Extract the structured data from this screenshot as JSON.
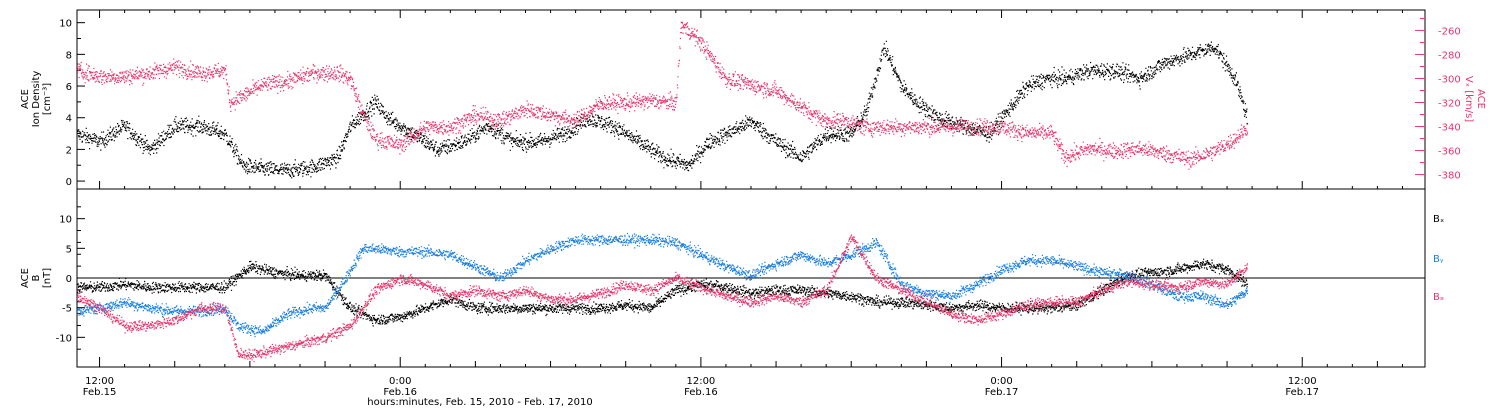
{
  "colors": {
    "black": "#000000",
    "pink": "#e8356a",
    "blue": "#1a7fe0"
  },
  "x_axis": {
    "title": "hours:minutes, Feb. 15, 2010 - Feb. 17, 2010",
    "ticks": [
      {
        "time": "12:00",
        "date": "Feb.15",
        "hour": 12
      },
      {
        "time": "0:00",
        "date": "Feb.16",
        "hour": 24
      },
      {
        "time": "12:00",
        "date": "Feb.16",
        "hour": 36
      },
      {
        "time": "0:00",
        "date": "Feb.17",
        "hour": 48
      },
      {
        "time": "12:00",
        "date": "Feb.17",
        "hour": 60
      }
    ],
    "range_hours": [
      11.1,
      64.9
    ]
  },
  "chart_data": [
    {
      "type": "scatter",
      "panel": "top",
      "ylabel_left": [
        "ACE",
        "Ion Density",
        "[cm⁻³]"
      ],
      "ylabel_right": [
        "ACE",
        "Vₓ [km/s]"
      ],
      "left_axis": {
        "ylim": [
          -0.5,
          10.8
        ],
        "ticks": [
          "0",
          "2",
          "4",
          "6",
          "8",
          "10"
        ],
        "tick_values": [
          0,
          2,
          4,
          6,
          8,
          10
        ]
      },
      "right_axis": {
        "ylim": [
          -392,
          -243
        ],
        "ticks": [
          "-260",
          "-280",
          "-300",
          "-320",
          "-340",
          "-360",
          "-380"
        ],
        "tick_values": [
          -260,
          -280,
          -300,
          -320,
          -340,
          -360,
          -380
        ]
      },
      "grid": false,
      "series": [
        {
          "key": "density",
          "color": "black",
          "axis": "left",
          "spread": 0.45,
          "x": [
            11.1,
            12.0,
            13.0,
            14.0,
            15.0,
            16.0,
            17.0,
            17.7,
            18.5,
            19.5,
            20.5,
            21.5,
            22.0,
            23.0,
            23.5,
            24.5,
            25.5,
            26.5,
            27.5,
            28.5,
            29.5,
            30.5,
            31.5,
            32.5,
            33.5,
            34.5,
            35.5,
            36.3,
            37.0,
            38.0,
            39.0,
            40.0,
            41.0,
            42.0,
            42.6,
            43.3,
            44.0,
            44.6,
            45.5,
            46.5,
            47.5,
            48.5,
            49.0,
            49.8,
            50.5,
            51.5,
            52.5,
            53.5,
            54.5,
            55.5,
            56.5,
            57.3,
            57.8
          ],
          "y": [
            3.0,
            2.5,
            3.5,
            2.0,
            3.5,
            3.5,
            3.0,
            1.0,
            0.8,
            0.7,
            0.9,
            1.5,
            3.5,
            5.0,
            4.0,
            3.0,
            2.0,
            2.5,
            3.5,
            2.5,
            2.5,
            3.0,
            4.0,
            3.5,
            2.5,
            1.5,
            1.0,
            2.5,
            3.0,
            3.8,
            2.5,
            1.5,
            3.0,
            3.0,
            4.5,
            8.5,
            6.0,
            5.0,
            4.0,
            3.5,
            3.0,
            5.0,
            6.0,
            6.5,
            6.5,
            7.0,
            7.0,
            6.5,
            7.5,
            8.0,
            8.5,
            6.5,
            4.0
          ]
        },
        {
          "key": "vx",
          "color": "pink",
          "axis": "right",
          "spread": 6,
          "x": [
            11.1,
            12.0,
            13.0,
            14.0,
            15.0,
            16.0,
            17.0,
            17.2,
            18.5,
            19.5,
            20.5,
            21.5,
            22.0,
            22.5,
            23.0,
            24.0,
            25.0,
            26.0,
            27.0,
            28.0,
            29.0,
            30.0,
            31.0,
            32.0,
            33.0,
            34.0,
            35.0,
            35.2,
            35.4,
            36.0,
            37.0,
            38.0,
            39.0,
            40.5,
            41.0,
            41.8,
            42.5,
            44.0,
            46.0,
            48.0,
            49.0,
            50.0,
            50.5,
            51.5,
            52.5,
            53.5,
            54.5,
            55.5,
            56.5,
            57.3,
            57.8
          ],
          "y": [
            -293,
            -298,
            -298,
            -295,
            -290,
            -295,
            -293,
            -320,
            -305,
            -302,
            -295,
            -295,
            -300,
            -330,
            -350,
            -355,
            -340,
            -340,
            -330,
            -335,
            -325,
            -330,
            -335,
            -320,
            -320,
            -318,
            -320,
            -255,
            -258,
            -270,
            -300,
            -305,
            -310,
            -330,
            -335,
            -335,
            -340,
            -340,
            -340,
            -340,
            -345,
            -345,
            -365,
            -358,
            -360,
            -358,
            -362,
            -367,
            -360,
            -350,
            -340
          ]
        }
      ]
    },
    {
      "type": "scatter",
      "panel": "bottom",
      "ylabel_left": [
        "ACE",
        "B",
        "[nT]"
      ],
      "ylim": [
        -15,
        15
      ],
      "ticks": [
        "10",
        "5",
        "0",
        "-5",
        "-10"
      ],
      "tick_values": [
        10,
        5,
        0,
        -5,
        -10
      ],
      "zero_line": true,
      "grid": false,
      "legend_position": "right",
      "series": [
        {
          "name": "Bₓ",
          "key": "bx",
          "color": "black",
          "spread": 0.8,
          "x": [
            11.1,
            12.0,
            13.0,
            14.0,
            15.0,
            16.0,
            17.0,
            18.0,
            19.0,
            20.0,
            21.0,
            22.0,
            23.0,
            24.0,
            25.0,
            26.0,
            27.0,
            28.0,
            29.0,
            30.0,
            31.0,
            32.0,
            33.0,
            34.0,
            35.0,
            36.0,
            37.0,
            38.0,
            39.0,
            40.0,
            41.0,
            42.0,
            43.0,
            44.0,
            45.0,
            46.0,
            47.0,
            48.0,
            49.0,
            50.0,
            51.0,
            52.0,
            53.0,
            54.0,
            55.0,
            56.0,
            57.0,
            57.8
          ],
          "y": [
            -1.5,
            -1.5,
            -1.0,
            -1.5,
            -1.5,
            -1.5,
            -1.5,
            2.0,
            1.0,
            0.5,
            0.5,
            -5.0,
            -7.0,
            -6.5,
            -5.0,
            -3.5,
            -5.0,
            -5.0,
            -5.0,
            -5.0,
            -5.0,
            -5.0,
            -4.5,
            -5.0,
            -2.0,
            -1.0,
            -1.5,
            -2.5,
            -2.0,
            -2.0,
            -2.5,
            -3.0,
            -4.0,
            -4.0,
            -4.5,
            -5.0,
            -4.5,
            -5.0,
            -5.0,
            -5.0,
            -4.5,
            -2.0,
            0.5,
            1.0,
            1.5,
            2.5,
            1.5,
            -1.0
          ]
        },
        {
          "name": "Bᵧ",
          "key": "by",
          "color": "blue",
          "spread": 0.8,
          "x": [
            11.1,
            12.0,
            13.0,
            14.0,
            15.0,
            16.0,
            17.0,
            17.5,
            18.5,
            19.5,
            20.5,
            21.0,
            21.8,
            22.5,
            23.0,
            24.0,
            25.0,
            26.0,
            27.0,
            28.0,
            29.0,
            30.0,
            31.0,
            32.0,
            33.0,
            34.0,
            35.0,
            36.0,
            37.0,
            38.0,
            39.0,
            40.0,
            41.0,
            42.0,
            43.0,
            44.0,
            45.0,
            46.0,
            47.0,
            48.0,
            49.0,
            50.0,
            51.0,
            52.0,
            53.0,
            54.0,
            55.0,
            56.0,
            57.0,
            57.8
          ],
          "y": [
            -5.5,
            -5.0,
            -4.0,
            -5.0,
            -5.5,
            -5.5,
            -5.0,
            -8.0,
            -9.0,
            -6.0,
            -5.0,
            -5.0,
            0.0,
            5.0,
            5.0,
            4.5,
            4.5,
            4.0,
            2.0,
            0.0,
            3.0,
            5.0,
            6.5,
            6.5,
            6.5,
            6.5,
            6.0,
            4.0,
            2.0,
            0.5,
            2.5,
            4.0,
            2.5,
            4.0,
            6.0,
            -1.0,
            -2.5,
            -3.0,
            -1.0,
            1.5,
            3.0,
            3.0,
            2.0,
            1.0,
            0.5,
            -1.0,
            -3.0,
            -3.0,
            -4.5,
            -2.0
          ]
        },
        {
          "name": "Bₔ",
          "key": "bz",
          "color": "pink",
          "spread": 0.8,
          "x": [
            11.1,
            12.0,
            13.0,
            14.0,
            15.0,
            16.0,
            17.0,
            17.5,
            18.0,
            19.0,
            20.0,
            21.0,
            22.0,
            23.0,
            24.0,
            25.0,
            26.0,
            27.0,
            28.0,
            29.0,
            30.0,
            31.0,
            32.0,
            33.0,
            34.0,
            35.0,
            36.0,
            37.0,
            38.0,
            39.0,
            40.0,
            41.0,
            42.0,
            43.0,
            44.0,
            45.0,
            46.0,
            47.0,
            48.0,
            49.0,
            50.0,
            51.0,
            52.0,
            53.0,
            54.0,
            55.0,
            56.0,
            57.0,
            57.8
          ],
          "y": [
            -3.0,
            -5.0,
            -8.0,
            -8.0,
            -7.0,
            -5.0,
            -5.0,
            -12.5,
            -13.0,
            -12.0,
            -11.0,
            -10.0,
            -8.0,
            -2.0,
            0.0,
            -1.0,
            -3.0,
            -2.0,
            -3.0,
            -2.0,
            -3.5,
            -3.5,
            -2.5,
            -1.0,
            -2.0,
            0.0,
            -1.5,
            -3.0,
            -4.0,
            -3.0,
            -4.0,
            -2.0,
            7.0,
            0.0,
            -2.0,
            -4.0,
            -6.0,
            -7.0,
            -6.0,
            -4.5,
            -4.0,
            -4.0,
            -2.0,
            -0.5,
            -1.0,
            -1.5,
            -0.5,
            -1.0,
            2.0
          ]
        }
      ]
    }
  ]
}
